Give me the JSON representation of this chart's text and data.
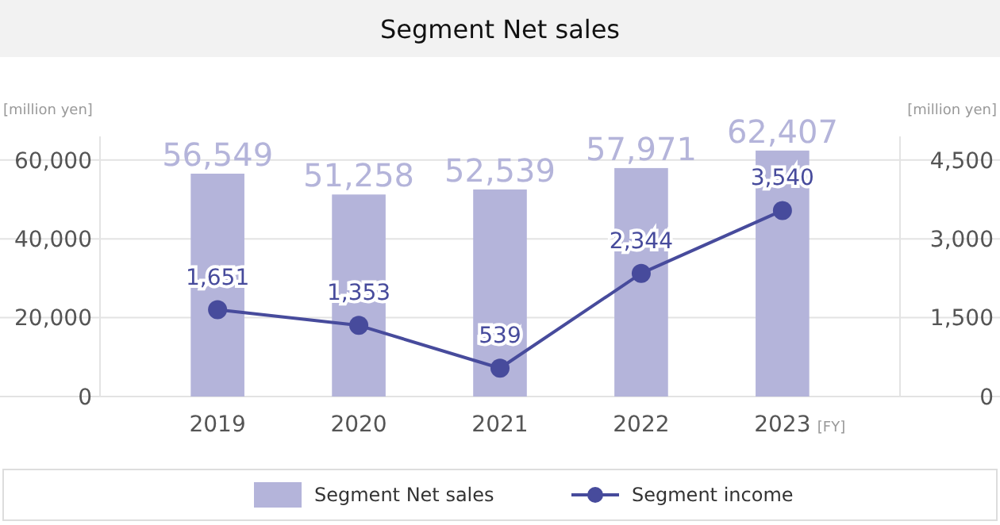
{
  "chart_data": {
    "type": "bar",
    "title": "Segment Net sales",
    "ylabel": "[million yen]",
    "y2label": "[million yen]",
    "xlabel": "[FY]",
    "categories": [
      "2019",
      "2020",
      "2021",
      "2022",
      "2023"
    ],
    "series": [
      {
        "name": "Segment Net sales",
        "color": "#b4b4da",
        "values": [
          56549,
          51258,
          52539,
          57971,
          62407
        ],
        "value_labels": [
          "56,549",
          "51,258",
          "52,539",
          "57,971",
          "62,407"
        ]
      },
      {
        "name": "Segment income",
        "type": "line",
        "axis": "y2",
        "color": "#474b9c",
        "values": [
          1651,
          1353,
          539,
          2344,
          3540
        ],
        "value_labels": [
          "1,651",
          "1,353",
          "539",
          "2,344",
          "3,540"
        ]
      }
    ],
    "ylim": [
      0,
      66000
    ],
    "yticks": [
      0,
      {
        "value": 20000,
        "label": "20,000"
      },
      {
        "value": 40000,
        "label": "40,000"
      },
      {
        "value": 60000,
        "label": "60,000"
      }
    ],
    "y2lim": [
      0,
      4950
    ],
    "y2ticks": [
      0,
      {
        "value": 1500,
        "label": "1,500"
      },
      {
        "value": 3000,
        "label": "3,000"
      },
      {
        "value": 4500,
        "label": "4,500"
      }
    ],
    "grid": "y",
    "legend": "bottom",
    "marker": "circle",
    "line_style": "solid"
  }
}
